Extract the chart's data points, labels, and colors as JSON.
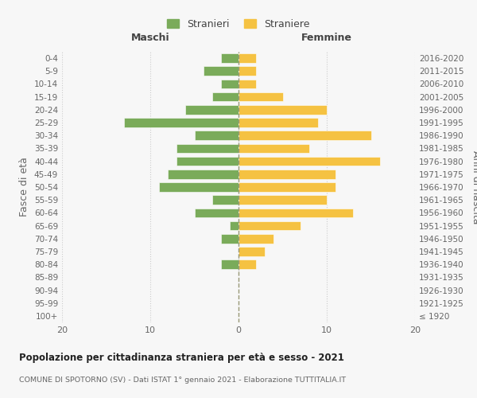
{
  "age_groups": [
    "0-4",
    "5-9",
    "10-14",
    "15-19",
    "20-24",
    "25-29",
    "30-34",
    "35-39",
    "40-44",
    "45-49",
    "50-54",
    "55-59",
    "60-64",
    "65-69",
    "70-74",
    "75-79",
    "80-84",
    "85-89",
    "90-94",
    "95-99",
    "100+"
  ],
  "birth_years": [
    "2016-2020",
    "2011-2015",
    "2006-2010",
    "2001-2005",
    "1996-2000",
    "1991-1995",
    "1986-1990",
    "1981-1985",
    "1976-1980",
    "1971-1975",
    "1966-1970",
    "1961-1965",
    "1956-1960",
    "1951-1955",
    "1946-1950",
    "1941-1945",
    "1936-1940",
    "1931-1935",
    "1926-1930",
    "1921-1925",
    "≤ 1920"
  ],
  "males": [
    2,
    4,
    2,
    3,
    6,
    13,
    5,
    7,
    7,
    8,
    9,
    3,
    5,
    1,
    2,
    0,
    2,
    0,
    0,
    0,
    0
  ],
  "females": [
    2,
    2,
    2,
    5,
    10,
    9,
    15,
    8,
    16,
    11,
    11,
    10,
    13,
    7,
    4,
    3,
    2,
    0,
    0,
    0,
    0
  ],
  "male_color": "#7aab5a",
  "female_color": "#f5c242",
  "bg_color": "#f7f7f7",
  "grid_color": "#cccccc",
  "title": "Popolazione per cittadinanza straniera per età e sesso - 2021",
  "subtitle": "COMUNE DI SPOTORNO (SV) - Dati ISTAT 1° gennaio 2021 - Elaborazione TUTTITALIA.IT",
  "ylabel_left": "Fasce di età",
  "ylabel_right": "Anni di nascita",
  "xlabel_left": "Maschi",
  "xlabel_right": "Femmine",
  "legend_male": "Stranieri",
  "legend_female": "Straniere",
  "xlim": 20
}
